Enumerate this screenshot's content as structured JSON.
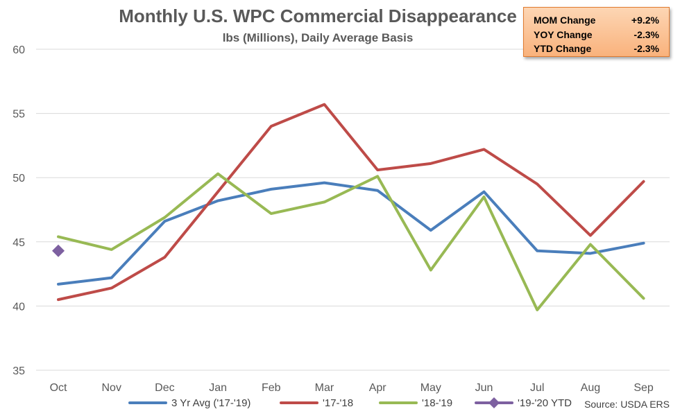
{
  "chart_data": {
    "type": "line",
    "title": "Monthly U.S. WPC Commercial Disappearance",
    "subtitle": "lbs (Millions), Daily Average Basis",
    "categories": [
      "Oct",
      "Nov",
      "Dec",
      "Jan",
      "Feb",
      "Mar",
      "Apr",
      "May",
      "Jun",
      "Jul",
      "Aug",
      "Sep"
    ],
    "ylim": [
      35,
      60
    ],
    "yticks": [
      35,
      40,
      45,
      50,
      55,
      60
    ],
    "grid": true,
    "legend_position": "bottom",
    "series": [
      {
        "name": "3 Yr Avg ('17-'19)",
        "color": "#4a7ebb",
        "marker": "none",
        "values": [
          41.7,
          42.2,
          46.6,
          48.2,
          49.1,
          49.6,
          49.0,
          45.9,
          48.9,
          44.3,
          44.1,
          44.9
        ]
      },
      {
        "name": "'17-'18",
        "color": "#be4b48",
        "marker": "none",
        "values": [
          40.5,
          41.4,
          43.8,
          48.9,
          54.0,
          55.7,
          50.6,
          51.1,
          52.2,
          49.5,
          45.5,
          49.7
        ]
      },
      {
        "name": "'18-'19",
        "color": "#98b954",
        "marker": "none",
        "values": [
          45.4,
          44.4,
          46.9,
          50.3,
          47.2,
          48.1,
          50.1,
          42.8,
          48.5,
          39.7,
          44.8,
          40.6
        ]
      },
      {
        "name": "'19-'20 YTD",
        "color": "#7d60a0",
        "marker": "diamond",
        "values": [
          44.3,
          null,
          null,
          null,
          null,
          null,
          null,
          null,
          null,
          null,
          null,
          null
        ]
      }
    ]
  },
  "stats": [
    {
      "label": "MOM Change",
      "value": "+9.2%"
    },
    {
      "label": "YOY Change",
      "value": "-2.3%"
    },
    {
      "label": "YTD Change",
      "value": "-2.3%"
    }
  ],
  "source": "Source: USDA ERS"
}
